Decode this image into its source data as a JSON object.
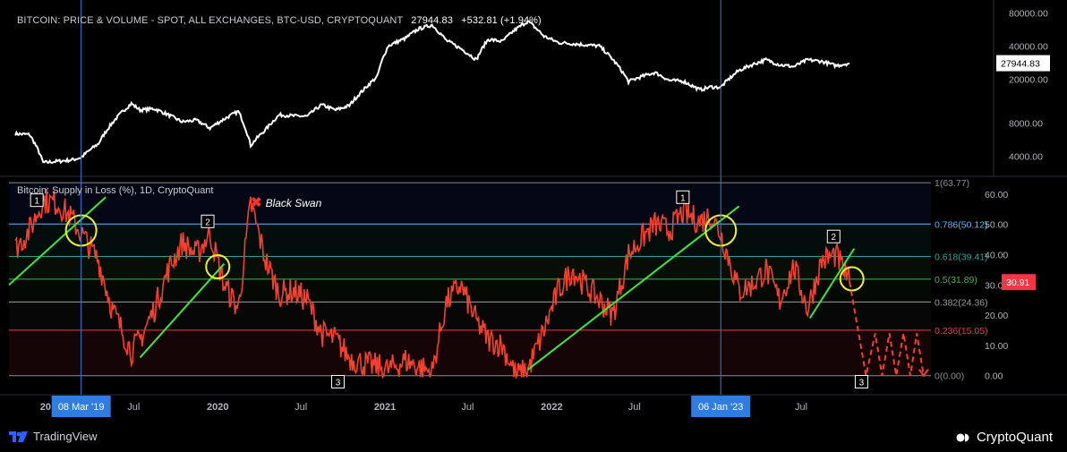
{
  "chart_data": [
    {
      "type": "line",
      "title": "BITCOIN: PRICE & VOLUME - SPOT, ALL EXCHANGES, BTC-USD, CRYPTOQUANT",
      "last_value": "27944.83",
      "change": "+532.81 (+1.94%)",
      "y_scale": "log",
      "ylim": [
        3000,
        90000
      ],
      "y_ticks": [
        "80000.00",
        "40000.00",
        "20000.00",
        "8000.00",
        "4000.00"
      ],
      "series": [
        {
          "color": "#ffffff",
          "x": [
            "2018-10-15",
            "2018-11-15",
            "2018-12-15",
            "2019-01-15",
            "2019-02-15",
            "2019-03-08",
            "2019-04-15",
            "2019-05-15",
            "2019-06-26",
            "2019-07-15",
            "2019-08-15",
            "2019-09-15",
            "2019-10-15",
            "2019-11-15",
            "2019-12-15",
            "2020-01-15",
            "2020-02-15",
            "2020-03-13",
            "2020-04-15",
            "2020-05-15",
            "2020-06-15",
            "2020-07-15",
            "2020-08-15",
            "2020-09-15",
            "2020-10-15",
            "2020-11-15",
            "2020-12-15",
            "2021-01-08",
            "2021-02-15",
            "2021-03-15",
            "2021-04-14",
            "2021-05-15",
            "2021-06-15",
            "2021-07-20",
            "2021-08-15",
            "2021-09-15",
            "2021-10-15",
            "2021-11-10",
            "2021-12-15",
            "2022-01-15",
            "2022-02-15",
            "2022-03-15",
            "2022-04-15",
            "2022-05-15",
            "2022-06-18",
            "2022-07-15",
            "2022-08-15",
            "2022-09-15",
            "2022-10-15",
            "2022-11-21",
            "2022-12-15",
            "2023-01-06",
            "2023-02-15",
            "2023-03-15",
            "2023-04-15",
            "2023-05-15",
            "2023-06-15",
            "2023-07-15",
            "2023-08-15",
            "2023-09-15",
            "2023-10-15"
          ],
          "values": [
            6400,
            6300,
            3500,
            3600,
            3700,
            3900,
            5200,
            8000,
            12000,
            10500,
            10800,
            9500,
            8200,
            8500,
            7200,
            8700,
            10200,
            5000,
            7000,
            9500,
            9300,
            9200,
            11700,
            10500,
            11500,
            16000,
            21000,
            40000,
            47000,
            57000,
            62000,
            45000,
            38000,
            30000,
            46000,
            44000,
            57000,
            67000,
            49000,
            43000,
            42000,
            41000,
            40000,
            30000,
            19000,
            21000,
            23000,
            19500,
            19200,
            16000,
            17000,
            16900,
            24000,
            27000,
            30000,
            27000,
            26000,
            30000,
            29000,
            26500,
            27944
          ]
        }
      ],
      "crosshair_labels": [
        "08 Mar '19",
        "06 Jan '23"
      ]
    },
    {
      "type": "line",
      "title": "Bitcoin: Supply in Loss (%), 1D, CryptoQuant",
      "last_value": "30.91",
      "ylim": [
        -6,
        65
      ],
      "y_ticks": [
        "60.00",
        "50.00",
        "40.00",
        "30.00",
        "20.00",
        "10.00",
        "0.00"
      ],
      "x_ticks": [
        "2019",
        "Jul",
        "2020",
        "Jul",
        "2021",
        "Jul",
        "2022",
        "Jul",
        "2023",
        "Jul"
      ],
      "series": [
        {
          "color": "#f5402c",
          "x": [
            "2018-10-15",
            "2018-11-15",
            "2018-12-15",
            "2019-01-15",
            "2019-02-15",
            "2019-03-08",
            "2019-04-15",
            "2019-05-15",
            "2019-06-26",
            "2019-07-15",
            "2019-08-15",
            "2019-09-15",
            "2019-10-15",
            "2019-11-15",
            "2019-12-15",
            "2020-01-15",
            "2020-02-15",
            "2020-03-13",
            "2020-04-15",
            "2020-05-15",
            "2020-06-15",
            "2020-07-15",
            "2020-08-15",
            "2020-09-15",
            "2020-10-15",
            "2020-11-15",
            "2020-12-15",
            "2021-01-08",
            "2021-02-15",
            "2021-03-15",
            "2021-04-14",
            "2021-05-15",
            "2021-06-15",
            "2021-07-20",
            "2021-08-15",
            "2021-09-15",
            "2021-10-15",
            "2021-11-10",
            "2021-12-15",
            "2022-01-15",
            "2022-02-15",
            "2022-03-15",
            "2022-04-15",
            "2022-05-15",
            "2022-06-18",
            "2022-07-15",
            "2022-08-15",
            "2022-09-15",
            "2022-10-15",
            "2022-11-21",
            "2022-12-15",
            "2023-01-06",
            "2023-02-15",
            "2023-03-15",
            "2023-04-15",
            "2023-05-15",
            "2023-06-15",
            "2023-07-15",
            "2023-08-15",
            "2023-09-15",
            "2023-10-15"
          ],
          "values": [
            42,
            48,
            58,
            57,
            52,
            47,
            38,
            22,
            8,
            12,
            22,
            35,
            44,
            40,
            47,
            30,
            22,
            57,
            38,
            27,
            28,
            25,
            14,
            12,
            6,
            4,
            3,
            2,
            5,
            3,
            1,
            24,
            30,
            18,
            12,
            10,
            0,
            2,
            15,
            28,
            35,
            30,
            25,
            20,
            40,
            45,
            50,
            48,
            54,
            51,
            53,
            47,
            28,
            30,
            35,
            25,
            36,
            22,
            38,
            40,
            31
          ]
        }
      ],
      "fibonacci_levels": [
        {
          "label": "1(63.77)",
          "value": 63.77,
          "color": "#8a8d95"
        },
        {
          "label": "0.786(50.12)",
          "value": 50.12,
          "color": "#64b5f6"
        },
        {
          "label": "0.618(39.41)",
          "value": 39.41,
          "color": "#26a69a"
        },
        {
          "label": "0.5(31.89)",
          "value": 31.89,
          "color": "#4caf50"
        },
        {
          "label": "0.382(24.36)",
          "value": 24.36,
          "color": "#9e9e9e"
        },
        {
          "label": "0.236(15.05)",
          "value": 15.05,
          "color": "#f23645"
        },
        {
          "label": "0(0.00)",
          "value": 0,
          "color": "#8a8d95"
        }
      ],
      "trendlines": [
        {
          "from": [
            "2018-10-01",
            30
          ],
          "to": [
            "2019-05-01",
            59
          ]
        },
        {
          "from": [
            "2019-07-15",
            6
          ],
          "to": [
            "2020-01-15",
            37
          ]
        },
        {
          "from": [
            "2021-11-10",
            2
          ],
          "to": [
            "2023-02-15",
            56
          ]
        },
        {
          "from": [
            "2023-07-20",
            19
          ],
          "to": [
            "2023-10-25",
            42
          ]
        }
      ],
      "circled_points": [
        [
          "2019-03-08",
          48
        ],
        [
          "2020-01-01",
          36
        ],
        [
          "2023-01-06",
          48
        ],
        [
          "2023-10-20",
          32
        ]
      ],
      "projection": {
        "x": [
          "2023-10-15",
          "2023-11-20",
          "2023-12-10",
          "2023-12-25",
          "2024-01-10",
          "2024-01-25",
          "2024-02-10",
          "2024-02-25",
          "2024-03-10",
          "2024-03-25"
        ],
        "values": [
          31,
          0,
          14,
          0,
          14,
          0,
          14,
          0,
          14,
          0
        ]
      },
      "wave_labels": [
        {
          "text": "1",
          "x": "2018-12-01",
          "y": 58
        },
        {
          "text": "2",
          "x": "2019-12-10",
          "y": 51
        },
        {
          "text": "3",
          "x": "2020-09-20",
          "y": -2
        },
        {
          "text": "1",
          "x": "2022-10-15",
          "y": 59
        },
        {
          "text": "2",
          "x": "2023-09-10",
          "y": 46
        },
        {
          "text": "3",
          "x": "2023-11-10",
          "y": -2
        }
      ],
      "annotation": "Black Swan"
    }
  ],
  "footer": {
    "left_brand": "TradingView",
    "right_brand": "CryptoQuant"
  }
}
